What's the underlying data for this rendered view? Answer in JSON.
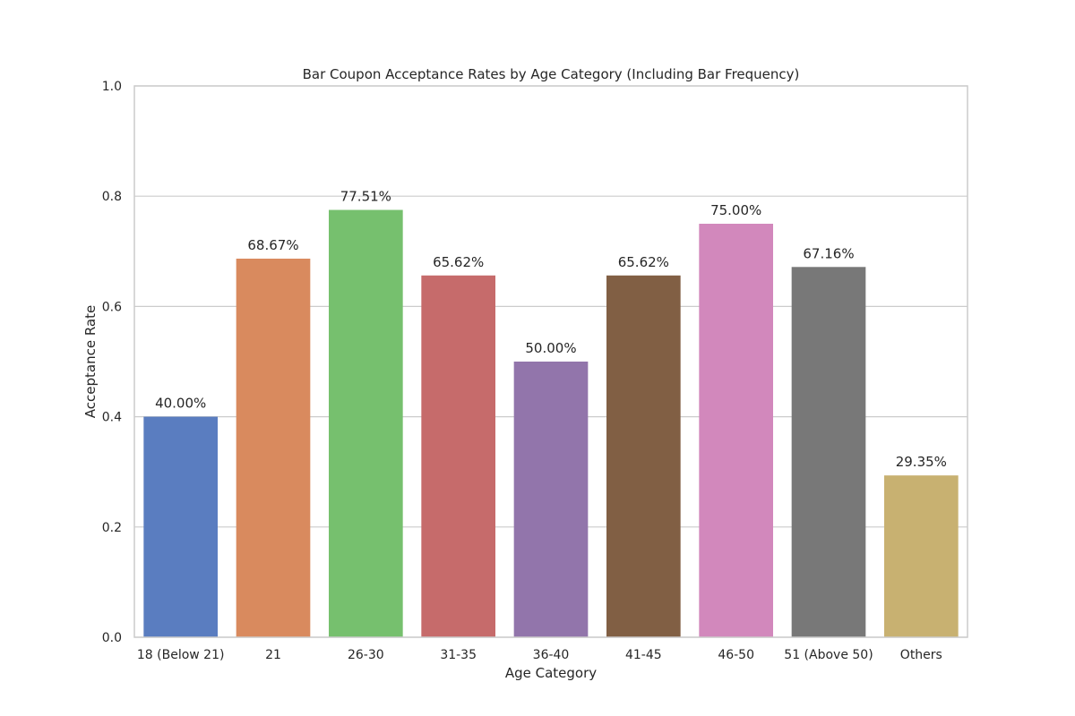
{
  "chart_data": {
    "type": "bar",
    "title": "Bar Coupon Acceptance Rates by Age Category (Including Bar Frequency)",
    "xlabel": "Age Category",
    "ylabel": "Acceptance Rate",
    "categories": [
      "18 (Below 21)",
      "21",
      "26-30",
      "31-35",
      "36-40",
      "41-45",
      "46-50",
      "51 (Above 50)",
      "Others"
    ],
    "values": [
      0.4,
      0.6867,
      0.7751,
      0.6562,
      0.5,
      0.6562,
      0.75,
      0.6716,
      0.2935
    ],
    "data_labels": [
      "40.00%",
      "68.67%",
      "77.51%",
      "65.62%",
      "50.00%",
      "65.62%",
      "75.00%",
      "67.16%",
      "29.35%"
    ],
    "colors": [
      "#5a7dc0",
      "#d98a5e",
      "#76c06e",
      "#c66b6b",
      "#9275ab",
      "#815f44",
      "#d288bc",
      "#787878",
      "#c8b171"
    ],
    "ylim": [
      0,
      1.0
    ],
    "yticks": [
      0.0,
      0.2,
      0.4,
      0.6,
      0.8,
      1.0
    ],
    "ytick_labels": [
      "0.0",
      "0.2",
      "0.4",
      "0.6",
      "0.8",
      "1.0"
    ],
    "grid": "horizontal"
  }
}
